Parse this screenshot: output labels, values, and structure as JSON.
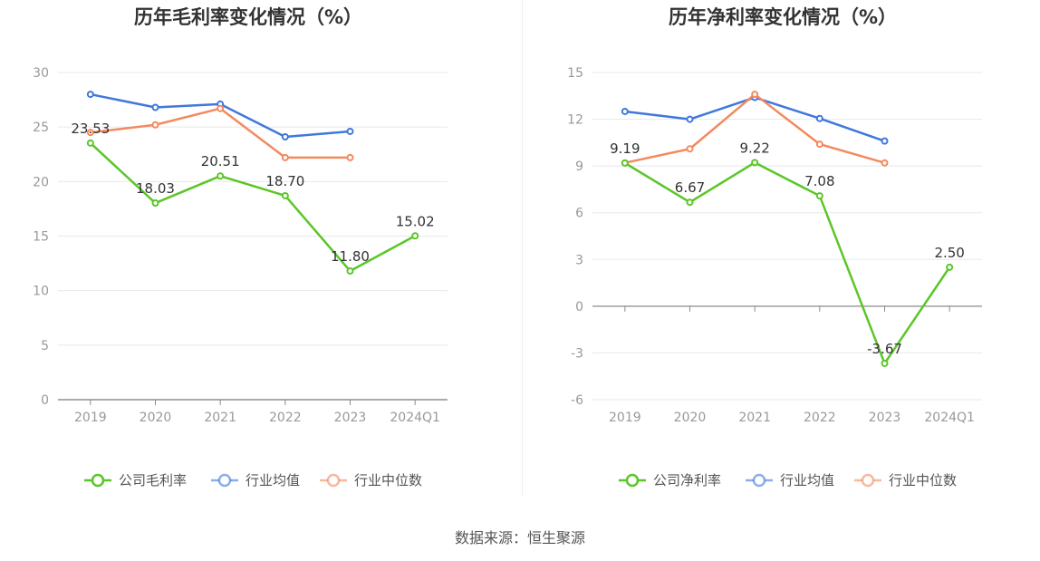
{
  "source": "数据来源：恒生聚源",
  "chart_data": [
    {
      "type": "line",
      "title": "历年毛利率变化情况（%）",
      "categories": [
        "2019",
        "2020",
        "2021",
        "2022",
        "2023",
        "2024Q1"
      ],
      "ylim": [
        0,
        30
      ],
      "yticks": [
        0,
        5,
        10,
        15,
        20,
        25,
        30
      ],
      "ytick_labels": [
        "0",
        "5",
        "10",
        "15",
        "20",
        "25",
        "30"
      ],
      "series": [
        {
          "name": "公司毛利率",
          "color": "#5bc628",
          "values": [
            23.53,
            18.03,
            20.51,
            18.7,
            11.8,
            15.02
          ],
          "labels": [
            "23.53",
            "18.03",
            "20.51",
            "18.70",
            "11.80",
            "15.02"
          ]
        },
        {
          "name": "行业均值",
          "color": "#3f78dc",
          "values": [
            28.0,
            26.8,
            27.1,
            24.1,
            24.6,
            null
          ]
        },
        {
          "name": "行业中位数",
          "color": "#f38a5f",
          "values": [
            24.5,
            25.2,
            26.7,
            22.2,
            22.2,
            null
          ]
        }
      ],
      "legend": [
        "公司毛利率",
        "行业均值",
        "行业中位数"
      ]
    },
    {
      "type": "line",
      "title": "历年净利率变化情况（%）",
      "categories": [
        "2019",
        "2020",
        "2021",
        "2022",
        "2023",
        "2024Q1"
      ],
      "ylim": [
        -6,
        15
      ],
      "yticks": [
        -6,
        -3,
        0,
        3,
        6,
        9,
        12,
        15
      ],
      "ytick_labels": [
        "-6",
        "-3",
        "0",
        "3",
        "6",
        "9",
        "12",
        "15"
      ],
      "series": [
        {
          "name": "公司净利率",
          "color": "#5bc628",
          "values": [
            9.19,
            6.67,
            9.22,
            7.08,
            -3.67,
            2.5
          ],
          "labels": [
            "9.19",
            "6.67",
            "9.22",
            "7.08",
            "-3.67",
            "2.50"
          ]
        },
        {
          "name": "行业均值",
          "color": "#3f78dc",
          "values": [
            12.5,
            12.0,
            13.4,
            12.05,
            10.6,
            null
          ]
        },
        {
          "name": "行业中位数",
          "color": "#f38a5f",
          "values": [
            9.2,
            10.1,
            13.6,
            10.4,
            9.2,
            null
          ]
        }
      ],
      "legend": [
        "公司净利率",
        "行业均值",
        "行业中位数"
      ]
    }
  ]
}
